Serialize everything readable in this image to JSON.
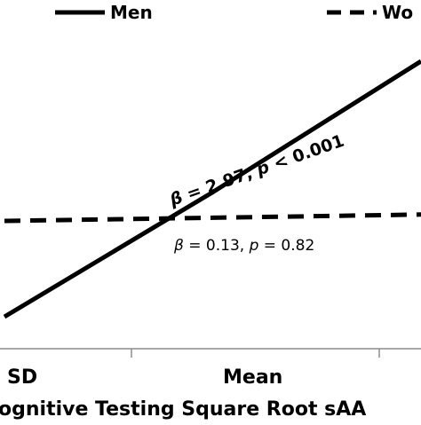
{
  "chart_data": {
    "type": "line",
    "title": "",
    "categories": [
      "SD",
      "Mean"
    ],
    "xlabel": "ognitive Testing Square Root sAA",
    "ylabel": "",
    "legend": {
      "placement": "top",
      "entries": [
        {
          "name": "Men",
          "style": "solid"
        },
        {
          "name": "Wo",
          "style": "dashed"
        }
      ]
    },
    "series": [
      {
        "name": "Men",
        "style": "solid",
        "color": "#000000",
        "points": [
          [
            -1,
            0.1
          ],
          [
            0,
            0.49
          ],
          [
            1,
            0.9
          ]
        ]
      },
      {
        "name": "Wo",
        "style": "dashed",
        "color": "#000000",
        "points": [
          [
            -1,
            0.4
          ],
          [
            0,
            0.41
          ],
          [
            1,
            0.42
          ]
        ]
      }
    ],
    "xlim": [
      -1,
      1
    ],
    "ylim": [
      0,
      1
    ],
    "grid": false,
    "annotations": [
      {
        "series": "Men",
        "parts": [
          "β",
          " = 2.97, ",
          "p",
          " < 0.001"
        ]
      },
      {
        "series": "Wo",
        "parts": [
          "β",
          " = 0.13, ",
          "p",
          " = 0.82"
        ]
      }
    ]
  }
}
